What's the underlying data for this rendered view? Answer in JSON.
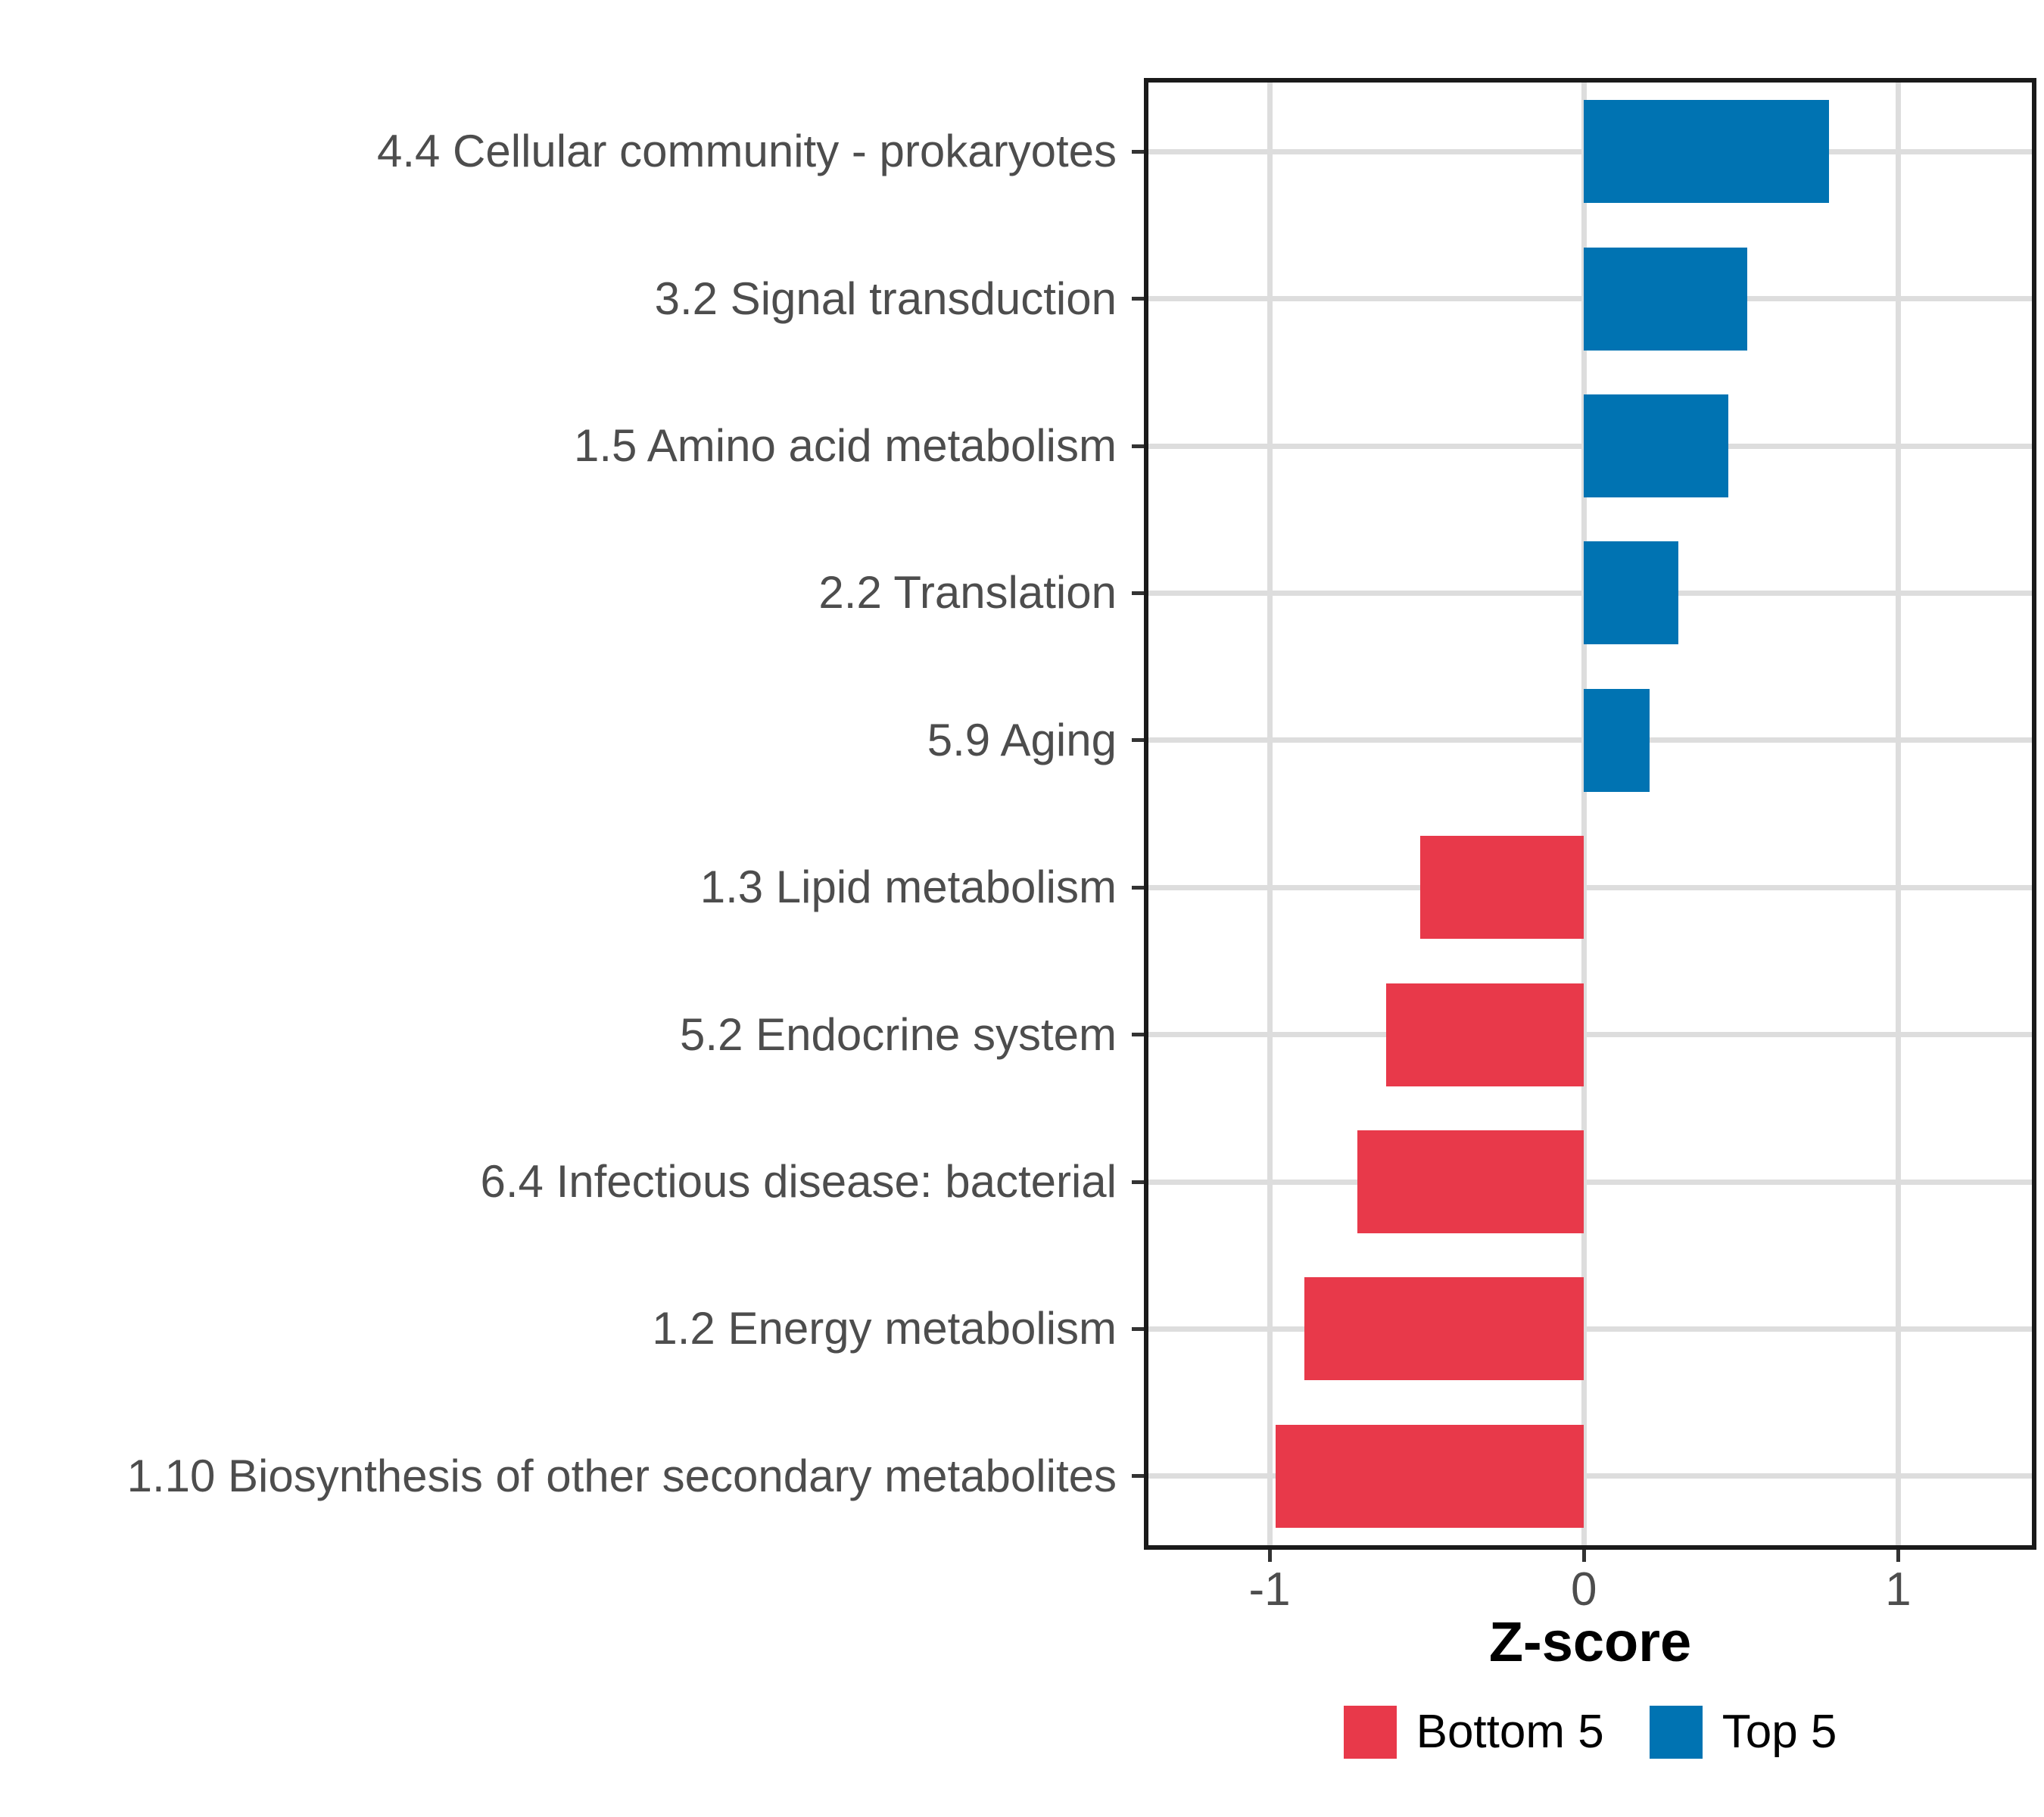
{
  "chart_data": {
    "type": "bar",
    "orientation": "horizontal",
    "title": "",
    "xlabel": "Z-score",
    "ylabel": "",
    "xlim": [
      -1.4,
      1.44
    ],
    "xticks": [
      -1,
      0,
      1
    ],
    "xtick_labels": [
      "-1",
      "0",
      "1"
    ],
    "grid": {
      "vertical_at_xticks": true,
      "horizontal_at_category_centers": true
    },
    "legend_position": "bottom",
    "categories": [
      "4.4 Cellular community - prokaryotes",
      "3.2 Signal transduction",
      "1.5 Amino acid metabolism",
      "2.2 Translation",
      "5.9 Aging",
      "1.3 Lipid metabolism",
      "5.2 Endocrine system",
      "6.4 Infectious disease: bacterial",
      "1.2 Energy metabolism",
      "1.10 Biosynthesis of other secondary metabolites"
    ],
    "values": [
      0.78,
      0.52,
      0.46,
      0.3,
      0.21,
      -0.52,
      -0.63,
      -0.72,
      -0.89,
      -0.98
    ],
    "groups": [
      "Top 5",
      "Top 5",
      "Top 5",
      "Top 5",
      "Top 5",
      "Bottom 5",
      "Bottom 5",
      "Bottom 5",
      "Bottom 5",
      "Bottom 5"
    ],
    "legend": {
      "items": [
        {
          "label": "Bottom 5",
          "color": "#E8394A"
        },
        {
          "label": "Top 5",
          "color": "#0073B2"
        }
      ]
    }
  },
  "style": {
    "bar_color_top5": "#0073B2",
    "bar_color_bottom5": "#E8394A",
    "grid_color": "#DDDDDD",
    "panel_border_color": "#1A1A1A",
    "axis_text_color": "#4D4D4D",
    "tick_color": "#333333",
    "axis_title_color": "#000000",
    "background_color": "#FFFFFF"
  }
}
